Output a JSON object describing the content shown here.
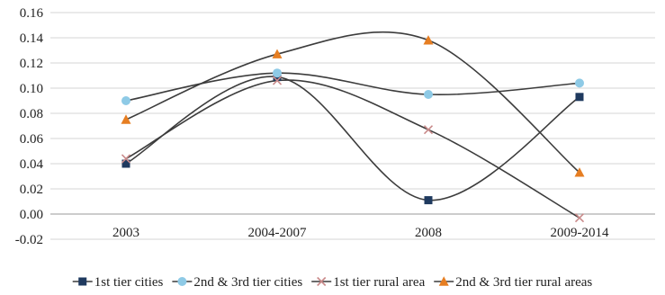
{
  "chart_data": {
    "type": "line",
    "title": "",
    "xlabel": "",
    "ylabel": "",
    "categories": [
      "2003",
      "2004-2007",
      "2008",
      "2009-2014"
    ],
    "ylim": [
      -0.02,
      0.16
    ],
    "ytick_step": 0.02,
    "yticks": [
      "-0.02",
      "0.00",
      "0.02",
      "0.04",
      "0.06",
      "0.08",
      "0.10",
      "0.12",
      "0.14",
      "0.16"
    ],
    "grid": "horizontal",
    "legend_position": "bottom",
    "smooth": true,
    "series": [
      {
        "name": "1st tier cities",
        "marker": "square",
        "color": "#1f3a5f",
        "values": [
          0.04,
          0.109,
          0.011,
          0.093
        ]
      },
      {
        "name": "2nd & 3rd tier cities",
        "marker": "circle",
        "color": "#8ecae6",
        "values": [
          0.09,
          0.112,
          0.095,
          0.104
        ]
      },
      {
        "name": "1st tier rural area",
        "marker": "x",
        "color": "#c98a8a",
        "values": [
          0.044,
          0.106,
          0.067,
          -0.003
        ]
      },
      {
        "name": "2nd & 3rd tier rural areas",
        "marker": "triangle",
        "color": "#e67e22",
        "values": [
          0.075,
          0.127,
          0.138,
          0.033
        ]
      }
    ]
  }
}
